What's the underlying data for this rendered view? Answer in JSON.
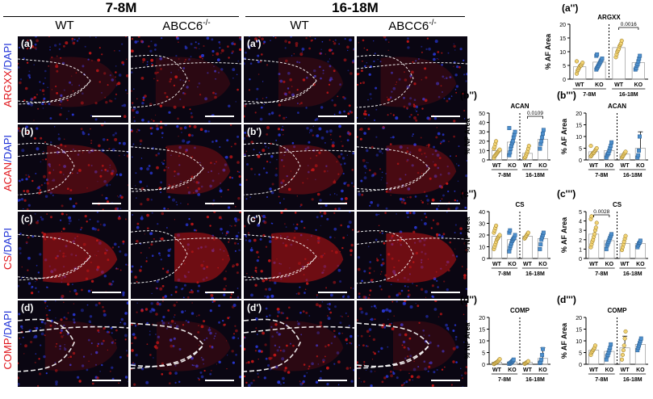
{
  "headers": {
    "group1": "7-8M",
    "group2": "16-18M",
    "columns": [
      "WT",
      "ABCC6",
      "WT",
      "ABCC6"
    ],
    "ko_superscript": "-/-"
  },
  "rows": [
    {
      "marker": "ARGXX",
      "stain": "DAPI",
      "labels": [
        "(a)",
        "",
        "(a')",
        ""
      ]
    },
    {
      "marker": "ACAN",
      "stain": "DAPI",
      "labels": [
        "(b)",
        "",
        "(b')",
        ""
      ]
    },
    {
      "marker": "CS",
      "stain": "DAPI",
      "labels": [
        "(c)",
        "",
        "(c')",
        ""
      ]
    },
    {
      "marker": "COMP",
      "stain": "DAPI",
      "labels": [
        "(d)",
        "",
        "(d')",
        ""
      ]
    }
  ],
  "separator": "/",
  "colors": {
    "marker": "#e0151b",
    "dapi": "#1c2fd6",
    "wt": "#f2d374",
    "ko": "#4d8fcc"
  },
  "chart_data": [
    {
      "id": "a2",
      "panel_label": "(a'')",
      "type": "scatter",
      "title": "ARGXX",
      "ylabel": "% AF Area",
      "ylim": [
        0,
        20
      ],
      "yticks": [
        0,
        5,
        10,
        15,
        20
      ],
      "categories": [
        "WT",
        "KO",
        "WT",
        "KO"
      ],
      "groups": [
        "7-8M",
        "16-18M"
      ],
      "means": [
        4.5,
        6.2,
        11.5,
        6.0
      ],
      "points": [
        [
          2,
          3,
          3.5,
          4,
          4.5,
          5,
          5,
          5.5,
          6,
          6.5
        ],
        [
          3.5,
          4,
          4.5,
          5,
          5.5,
          6,
          6.5,
          7,
          7.5,
          8.5,
          9
        ],
        [
          8,
          9,
          10,
          10.5,
          11,
          12,
          12.5,
          13,
          14
        ],
        [
          3.5,
          4,
          5,
          5.5,
          6.5,
          7.5,
          8.5
        ]
      ],
      "annotation": {
        "text": "0.0016",
        "from": 2,
        "to": 3
      }
    },
    {
      "id": "b2",
      "panel_label": "(b'')",
      "type": "scatter",
      "title": "ACAN",
      "ylabel": "% NP Area",
      "ylim": [
        0,
        50
      ],
      "yticks": [
        0,
        10,
        20,
        30,
        40,
        50
      ],
      "categories": [
        "WT",
        "KO",
        "WT",
        "KO"
      ],
      "groups": [
        "7-8M",
        "16-18M"
      ],
      "means": [
        10,
        19,
        7,
        22
      ],
      "points": [
        [
          2,
          4,
          5,
          6,
          7,
          8,
          9,
          10,
          11,
          12,
          14,
          17,
          20
        ],
        [
          5,
          8,
          12,
          15,
          18,
          20,
          24,
          27,
          30,
          34
        ],
        [
          2,
          3,
          5,
          7,
          9,
          12,
          15
        ],
        [
          12,
          17,
          20,
          24,
          28,
          32
        ]
      ],
      "annotation": {
        "text": "0.0109",
        "from": 2,
        "to": 3
      }
    },
    {
      "id": "b3",
      "panel_label": "(b''')",
      "type": "scatter",
      "title": "ACAN",
      "ylabel": "% AF Area",
      "ylim": [
        0,
        20
      ],
      "yticks": [
        0,
        5,
        10,
        15,
        20
      ],
      "categories": [
        "WT",
        "KO",
        "WT",
        "KO"
      ],
      "groups": [
        "7-8M",
        "16-18M"
      ],
      "means": [
        3.5,
        4,
        2.5,
        5
      ],
      "points": [
        [
          1.5,
          2,
          2.5,
          3,
          3,
          3.5,
          4,
          4.5,
          5,
          6
        ],
        [
          1,
          2,
          2.5,
          3,
          4,
          5,
          6,
          7.5
        ],
        [
          1,
          1.5,
          2,
          2.5,
          3,
          3.5
        ],
        [
          1,
          2,
          4,
          10
        ]
      ],
      "errors": [
        null,
        null,
        null,
        7
      ],
      "annotation": null
    },
    {
      "id": "c2",
      "panel_label": "(c'')",
      "type": "scatter",
      "title": "CS",
      "ylabel": "% NP Area",
      "ylim": [
        0,
        40
      ],
      "yticks": [
        0,
        10,
        20,
        30,
        40
      ],
      "categories": [
        "WT",
        "KO",
        "WT",
        "KO"
      ],
      "groups": [
        "7-8M",
        "16-18M"
      ],
      "means": [
        19,
        16,
        19,
        17
      ],
      "points": [
        [
          8,
          10,
          12,
          14,
          16,
          17,
          18,
          19,
          20,
          22,
          24,
          26,
          28
        ],
        [
          6,
          9,
          11,
          13,
          15,
          16,
          17,
          18,
          20,
          22,
          24
        ],
        [
          17,
          18,
          19,
          20,
          21,
          22
        ],
        [
          8,
          12,
          16,
          18,
          20,
          22
        ]
      ],
      "annotation": null
    },
    {
      "id": "c3",
      "panel_label": "(c''')",
      "type": "scatter",
      "title": "CS",
      "ylabel": "% AF Area",
      "ylim": [
        0,
        5
      ],
      "yticks": [
        0,
        1,
        2,
        3,
        4,
        5
      ],
      "categories": [
        "WT",
        "KO",
        "WT",
        "KO"
      ],
      "groups": [
        "7-8M",
        "16-18M"
      ],
      "means": [
        2.6,
        1.9,
        1.6,
        1.6
      ],
      "points": [
        [
          1.2,
          1.5,
          1.8,
          2.0,
          2.3,
          2.6,
          3.0,
          3.3,
          3.8,
          4.2,
          4.5
        ],
        [
          1.0,
          1.4,
          1.6,
          1.8,
          2.0,
          2.2,
          2.4,
          2.6
        ],
        [
          0.9,
          1.2,
          1.5,
          1.8,
          2.1,
          2.4
        ],
        [
          1.2,
          1.4,
          1.6,
          1.7,
          1.9
        ]
      ],
      "annotation": {
        "text": "0.0028",
        "from": 0,
        "to": 1
      }
    },
    {
      "id": "d2",
      "panel_label": "(d'')",
      "type": "scatter",
      "title": "COMP",
      "ylabel": "% NP Area",
      "ylim": [
        0,
        20
      ],
      "yticks": [
        0,
        5,
        10,
        15,
        20
      ],
      "categories": [
        "WT",
        "KO",
        "WT",
        "KO"
      ],
      "groups": [
        "7-8M",
        "16-18M"
      ],
      "means": [
        0.9,
        1.0,
        0.8,
        2.5
      ],
      "points": [
        [
          0.1,
          0.3,
          0.5,
          0.7,
          0.9,
          1.1,
          1.4,
          1.8,
          2.2
        ],
        [
          0.2,
          0.4,
          0.6,
          0.9,
          1.2,
          1.5,
          2.0
        ],
        [
          0.2,
          0.4,
          0.6,
          0.8,
          1.0,
          1.3
        ],
        [
          0.5,
          1.0,
          2.0,
          4.0,
          6.5
        ]
      ],
      "errors": [
        null,
        null,
        null,
        4.5
      ],
      "annotation": null
    },
    {
      "id": "d3",
      "panel_label": "(d''')",
      "type": "scatter",
      "title": "COMP",
      "ylabel": "% AF Area",
      "ylim": [
        0,
        20
      ],
      "yticks": [
        0,
        5,
        10,
        15,
        20
      ],
      "categories": [
        "WT",
        "KO",
        "WT",
        "KO"
      ],
      "groups": [
        "7-8M",
        "16-18M"
      ],
      "means": [
        6,
        5.5,
        7,
        8.5
      ],
      "points": [
        [
          4,
          5,
          5.5,
          6,
          6.5,
          7,
          8
        ],
        [
          2,
          3.5,
          4,
          5,
          6,
          7,
          8.5
        ],
        [
          2,
          4,
          6,
          8,
          11,
          14
        ],
        [
          6,
          7,
          8,
          9,
          10,
          11
        ]
      ],
      "errors": [
        null,
        null,
        5,
        null
      ],
      "annotation": null
    }
  ]
}
